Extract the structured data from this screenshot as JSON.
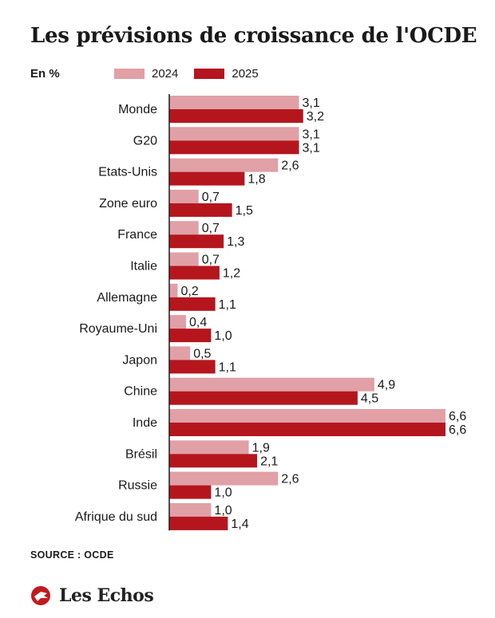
{
  "title": "Les prévisions de croissance de l'OCDE",
  "unit_label": "En %",
  "source": "SOURCE : OCDE",
  "brand": "Les Echos",
  "colors": {
    "series_2024": "#e0a0a6",
    "series_2025": "#b5161e",
    "brand": "#c21a1f"
  },
  "chart_data": {
    "type": "bar",
    "orientation": "horizontal",
    "title": "Les prévisions de croissance de l'OCDE",
    "ylabel": "En %",
    "legend_position": "top",
    "xlim": [
      0,
      6.6
    ],
    "categories": [
      "Monde",
      "G20",
      "Etats-Unis",
      "Zone euro",
      "France",
      "Italie",
      "Allemagne",
      "Royaume-Uni",
      "Japon",
      "Chine",
      "Inde",
      "Brésil",
      "Russie",
      "Afrique du sud"
    ],
    "series": [
      {
        "name": "2024",
        "values": [
          3.1,
          3.1,
          2.6,
          0.7,
          0.7,
          0.7,
          0.2,
          0.4,
          0.5,
          4.9,
          6.6,
          1.9,
          2.6,
          1.0
        ],
        "labels": [
          "3,1",
          "3,1",
          "2,6",
          "0,7",
          "0,7",
          "0,7",
          "0,2",
          "0,4",
          "0,5",
          "4,9",
          "6,6",
          "1,9",
          "2,6",
          "1,0"
        ]
      },
      {
        "name": "2025",
        "values": [
          3.2,
          3.1,
          1.8,
          1.5,
          1.3,
          1.2,
          1.1,
          1.0,
          1.1,
          4.5,
          6.6,
          2.1,
          1.0,
          1.4
        ],
        "labels": [
          "3,2",
          "3,1",
          "1,8",
          "1,5",
          "1,3",
          "1,2",
          "1,1",
          "1,0",
          "1,1",
          "4,5",
          "6,6",
          "2,1",
          "1,0",
          "1,4"
        ]
      }
    ]
  }
}
